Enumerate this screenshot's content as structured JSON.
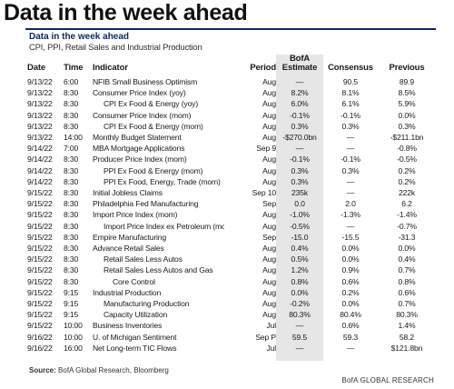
{
  "header": {
    "title": "Data in the week ahead",
    "section": "Data in the week ahead",
    "subtitle": "CPI, PPI, Retail Sales and Industrial Production"
  },
  "table": {
    "columns": [
      "Date",
      "Time",
      "Indicator",
      "Period",
      "BofA Estimate",
      "Consensus",
      "Previous"
    ],
    "rows": [
      [
        "9/13/22",
        "6:00",
        "NFIB Small Business Optimism",
        "Aug",
        "—",
        "90.5",
        "89.9"
      ],
      [
        "9/13/22",
        "8:30",
        "Consumer Price Index (yoy)",
        "Aug",
        "8.2%",
        "8.1%",
        "8.5%"
      ],
      [
        "9/13/22",
        "8:30",
        "CPI Ex Food & Energy (yoy)",
        "Aug",
        "6.0%",
        "6.1%",
        "5.9%"
      ],
      [
        "9/13/22",
        "8:30",
        "Consumer Price Index (mom)",
        "Aug",
        "-0.1%",
        "-0.1%",
        "0.0%"
      ],
      [
        "9/13/22",
        "8:30",
        "CPI Ex Food & Energy (mom)",
        "Aug",
        "0.3%",
        "0.3%",
        "0.3%"
      ],
      [
        "9/13/22",
        "14:00",
        "Monthly Budget Statement",
        "Aug",
        "-$270.0bn",
        "—",
        "-$211.1bn"
      ],
      [
        "9/14/22",
        "7:00",
        "MBA Mortgage Applications",
        "Sep 9",
        "—",
        "—",
        "-0.8%"
      ],
      [
        "9/14/22",
        "8:30",
        "Producer Price Index (mom)",
        "Aug",
        "-0.1%",
        "-0.1%",
        "-0.5%"
      ],
      [
        "9/14/22",
        "8:30",
        "PPI Ex Food & Energy (mom)",
        "Aug",
        "0.3%",
        "0.3%",
        "0.2%"
      ],
      [
        "9/14/22",
        "8:30",
        "PPI Ex Food, Energy, Trade (mom)",
        "Aug",
        "0.3%",
        "—",
        "0.2%"
      ],
      [
        "9/15/22",
        "8:30",
        "Initial Jobless Claims",
        "Sep 10",
        "235k",
        "—",
        "222k"
      ],
      [
        "9/15/22",
        "8:30",
        "Philadelphia Fed Manufacturing",
        "Sep",
        "0.0",
        "2.0",
        "6.2"
      ],
      [
        "9/15/22",
        "8:30",
        "Import Price Index (mom)",
        "Aug",
        "-1.0%",
        "-1.3%",
        "-1.4%"
      ],
      [
        "9/15/22",
        "8:30",
        "Import Price Index ex Petroleum (mom)",
        "Aug",
        "-0.5%",
        "—",
        "-0.7%"
      ],
      [
        "9/15/22",
        "8:30",
        "Empire Manufacturing",
        "Sep",
        "-15.0",
        "-15.5",
        "-31.3"
      ],
      [
        "9/15/22",
        "8:30",
        "Advance Retail Sales",
        "Aug",
        "0.4%",
        "0.0%",
        "0.0%"
      ],
      [
        "9/15/22",
        "8:30",
        "Retail Sales Less Autos",
        "Aug",
        "0.5%",
        "0.0%",
        "0.4%"
      ],
      [
        "9/15/22",
        "8:30",
        "Retail Sales Less Autos and Gas",
        "Aug",
        "1.2%",
        "0.9%",
        "0.7%"
      ],
      [
        "9/15/22",
        "8:30",
        "Core Control",
        "Aug",
        "0.8%",
        "0.6%",
        "0.8%"
      ],
      [
        "9/15/22",
        "9:15",
        "Industrial Production",
        "Aug",
        "0.0%",
        "0.2%",
        "0.6%"
      ],
      [
        "9/15/22",
        "9:15",
        "Manufacturing Production",
        "Aug",
        "-0.2%",
        "0.0%",
        "0.7%"
      ],
      [
        "9/15/22",
        "9:15",
        "Capacity Utilization",
        "Aug",
        "80.3%",
        "80.4%",
        "80.3%"
      ],
      [
        "9/15/22",
        "10:00",
        "Business Inventories",
        "Jul",
        "—",
        "0.6%",
        "1.4%"
      ],
      [
        "9/16/22",
        "10:00",
        "U. of Michigan Sentiment",
        "Sep P",
        "59.5",
        "59.3",
        "58.2"
      ],
      [
        "9/16/22",
        "16:00",
        "Net Long-term TIC Flows",
        "Jul",
        "—",
        "—",
        "$121.8bn"
      ]
    ]
  },
  "footer": {
    "source_label": "Source:",
    "source": "BofA Global Research, Bloomberg",
    "brand": "BofA GLOBAL RESEARCH"
  }
}
